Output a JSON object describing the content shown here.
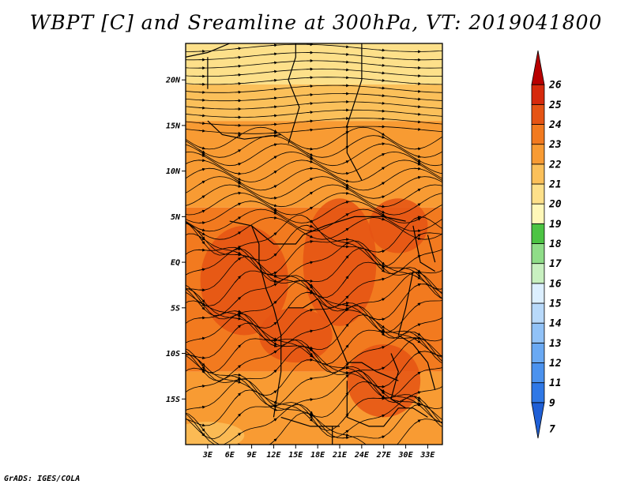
{
  "title": "WBPT [C] and Sreamline at 300hPa, VT: 2019041800",
  "credit": "GrADS: IGES/COLA",
  "map": {
    "lon_range": [
      0,
      35
    ],
    "lat_range": [
      -20,
      24
    ],
    "lat_ticks": [
      {
        "value": 20,
        "label": "20N"
      },
      {
        "value": 15,
        "label": "15N"
      },
      {
        "value": 10,
        "label": "10N"
      },
      {
        "value": 5,
        "label": "5N"
      },
      {
        "value": 0,
        "label": "EQ"
      },
      {
        "value": -5,
        "label": "5S"
      },
      {
        "value": -10,
        "label": "10S"
      },
      {
        "value": -15,
        "label": "15S"
      }
    ],
    "lon_ticks": [
      {
        "value": 3,
        "label": "3E"
      },
      {
        "value": 6,
        "label": "6E"
      },
      {
        "value": 9,
        "label": "9E"
      },
      {
        "value": 12,
        "label": "12E"
      },
      {
        "value": 15,
        "label": "15E"
      },
      {
        "value": 18,
        "label": "18E"
      },
      {
        "value": 21,
        "label": "21E"
      },
      {
        "value": 24,
        "label": "24E"
      },
      {
        "value": 27,
        "label": "27E"
      },
      {
        "value": 30,
        "label": "30E"
      },
      {
        "value": 33,
        "label": "33E"
      }
    ],
    "wbpt_bands": [
      {
        "lat_min": 19.5,
        "lat_max": 24,
        "level": 20
      },
      {
        "lat_min": 15.5,
        "lat_max": 19.5,
        "level": 21
      },
      {
        "lat_min": 6,
        "lat_max": 15.5,
        "level": 22
      },
      {
        "lat_min": -12,
        "lat_max": 6,
        "level": 23
      },
      {
        "lat_min": -20,
        "lat_max": -12,
        "level": 22
      }
    ]
  },
  "colorbar": {
    "levels": [
      "7",
      "9",
      "11",
      "12",
      "13",
      "14",
      "15",
      "16",
      "17",
      "18",
      "19",
      "20",
      "21",
      "22",
      "23",
      "24",
      "25",
      "26"
    ],
    "colors": [
      "#1f5fd6",
      "#2f78e6",
      "#4b92ee",
      "#6aa9f3",
      "#91c2f7",
      "#b8d9fa",
      "#dcefff",
      "#c8f0c0",
      "#8fdd88",
      "#4cc443",
      "#fff7b8",
      "#fde08a",
      "#fbc05a",
      "#f89b33",
      "#f27a1f",
      "#e55414",
      "#d62a0c",
      "#b80000"
    ]
  }
}
